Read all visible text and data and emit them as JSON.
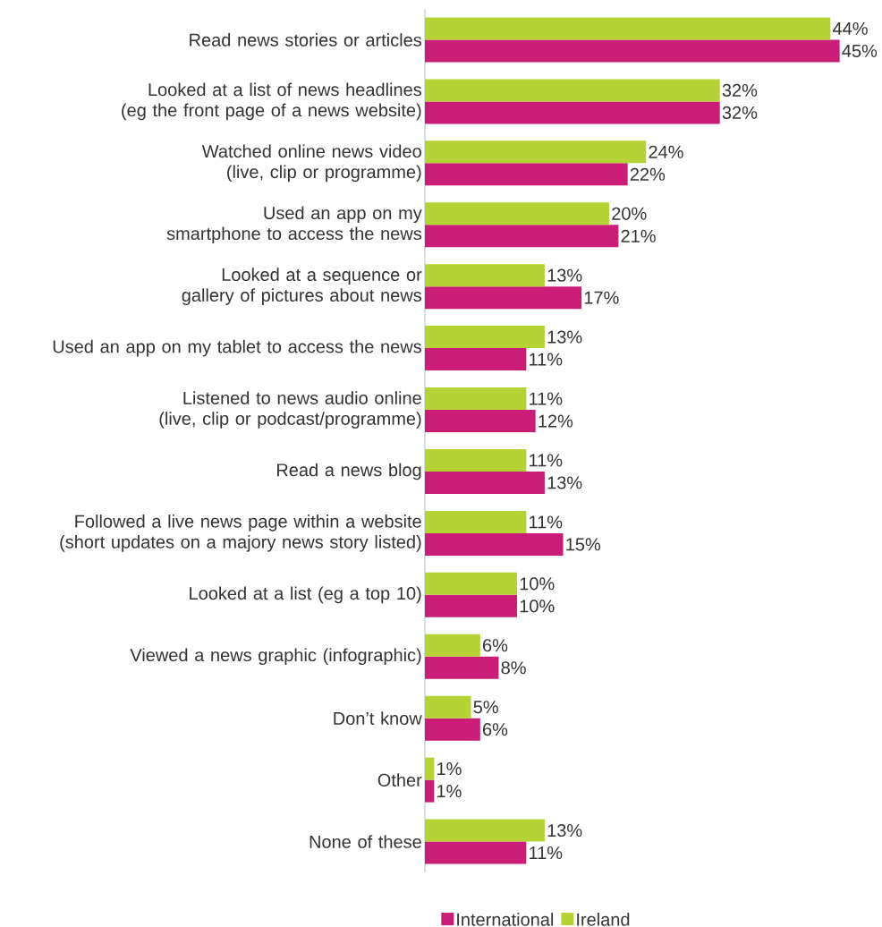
{
  "chart_data": {
    "type": "bar",
    "orientation": "horizontal",
    "legend": "bottom",
    "categories": [
      "Read news stories or articles",
      "Looked at a list of news headlines (eg the front page of a news website)",
      "Watched online news video (live, clip or programme)",
      "Used an app on my smartphone to access the news",
      "Looked at a sequence or gallery of pictures about news",
      "Used an app on my tablet to access the news",
      "Listened to news audio online (live, clip or podcast/programme)",
      "Read a news blog",
      "Followed a live news page within a website (short updates on a majory news story listed)",
      "Looked at a list (eg a top 10)",
      "Viewed a news graphic (infographic)",
      "Don’t know",
      "Other",
      "None of these"
    ],
    "series": [
      {
        "name": "International",
        "color": "#c91d78",
        "values": [
          45,
          32,
          22,
          21,
          17,
          11,
          12,
          13,
          15,
          10,
          8,
          6,
          1,
          11
        ],
        "value_labels": [
          "45%",
          "32%",
          "22%",
          "21%",
          "17%",
          "11%",
          "12%",
          "13%",
          "15%",
          "10%",
          "8%",
          "6%",
          "1%",
          "11%"
        ]
      },
      {
        "name": "Ireland",
        "color": "#b5d334",
        "values": [
          44,
          32,
          24,
          20,
          13,
          13,
          11,
          11,
          11,
          10,
          6,
          5,
          1,
          13
        ],
        "value_labels": [
          "44%",
          "32%",
          "24%",
          "20%",
          "13%",
          "13%",
          "11%",
          "11%",
          "11%",
          "10%",
          "6%",
          "5%",
          "1%",
          "13%"
        ]
      }
    ]
  }
}
